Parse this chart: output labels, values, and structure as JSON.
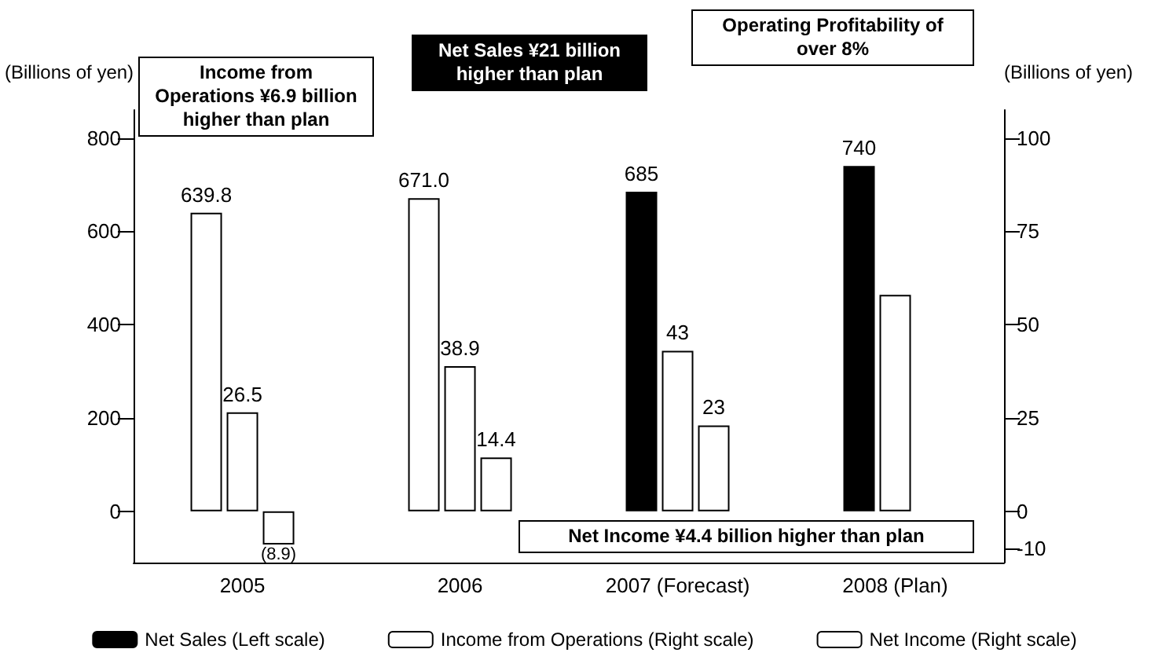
{
  "chart_data": {
    "type": "bar",
    "categories": [
      "2005",
      "2006",
      "2007 (Forecast)",
      "2008 (Plan)"
    ],
    "ylabel": "(Billions of yen)",
    "y2label": "(Billions of yen)",
    "ylim": [
      -110,
      860
    ],
    "yticks": [
      0,
      200,
      400,
      600,
      800
    ],
    "y2lim": [
      -13.75,
      107.5
    ],
    "y2ticks": [
      -10,
      0,
      25,
      50,
      75,
      100
    ],
    "legend": "bottom",
    "series": [
      {
        "name": "Net Sales (Left scale)",
        "color": "#000000",
        "colors": [
          "#ffffff",
          "#ffffff",
          "#000000",
          "#000000"
        ],
        "values": [
          639.8,
          671.0,
          685,
          740
        ],
        "value_labels": [
          "639.8",
          "671.0",
          "685",
          "740"
        ]
      },
      {
        "name": "Income from Operations (Right scale)",
        "color": "#ffffff",
        "axis": "y2",
        "values": [
          26.5,
          38.9,
          43,
          58
        ],
        "value_labels": [
          "26.5",
          "38.9",
          "43",
          null
        ]
      },
      {
        "name": "Net Income (Right scale)",
        "color": "#ffffff",
        "axis": "y2",
        "values": [
          -8.9,
          14.4,
          23,
          null
        ],
        "value_labels": [
          "(8.9)",
          "14.4",
          "23",
          null
        ]
      }
    ],
    "annotations": [
      "Net Sales ¥21 billion higher than plan",
      "Income from Operations ¥6.9 billion higher than plan",
      "Net Income ¥4.4 billion higher than plan",
      "Operating Profitability of over 8%"
    ]
  }
}
